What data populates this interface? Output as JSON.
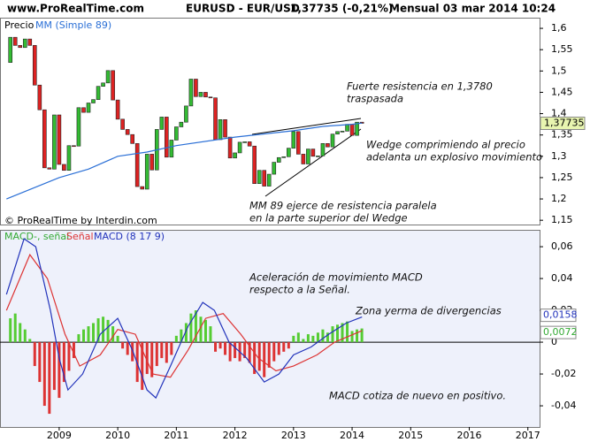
{
  "header": {
    "site": "www.ProRealTime.com",
    "instrument": "EURUSD - EUR/USD",
    "quote": "1,37735 (-0,21%)",
    "period": "Mensual  03 mar 2014 10:24"
  },
  "chart_data": [
    {
      "type": "candlestick",
      "legend": [
        "Precio",
        "MM (Simple 89)"
      ],
      "credit": "© ProRealTime by Interdin.com",
      "x": [
        2008.167,
        2008.25,
        2008.333,
        2008.417,
        2008.5,
        2008.583,
        2008.667,
        2008.75,
        2008.833,
        2008.917,
        2009,
        2009.083,
        2009.167,
        2009.25,
        2009.333,
        2009.417,
        2009.5,
        2009.583,
        2009.667,
        2009.75,
        2009.833,
        2009.917,
        2010,
        2010.083,
        2010.167,
        2010.25,
        2010.333,
        2010.417,
        2010.5,
        2010.583,
        2010.667,
        2010.75,
        2010.833,
        2010.917,
        2011,
        2011.083,
        2011.167,
        2011.25,
        2011.333,
        2011.417,
        2011.5,
        2011.583,
        2011.667,
        2011.75,
        2011.833,
        2011.917,
        2012,
        2012.083,
        2012.167,
        2012.25,
        2012.333,
        2012.417,
        2012.5,
        2012.583,
        2012.667,
        2012.75,
        2012.833,
        2012.917,
        2013,
        2013.083,
        2013.167,
        2013.25,
        2013.333,
        2013.417,
        2013.5,
        2013.583,
        2013.667,
        2013.75,
        2013.833,
        2013.917,
        2014,
        2014.083,
        2014.167
      ],
      "open": [
        1.52,
        1.579,
        1.56,
        1.555,
        1.575,
        1.56,
        1.467,
        1.409,
        1.273,
        1.27,
        1.397,
        1.281,
        1.267,
        1.325,
        1.324,
        1.414,
        1.403,
        1.425,
        1.433,
        1.464,
        1.472,
        1.501,
        1.432,
        1.387,
        1.363,
        1.351,
        1.33,
        1.229,
        1.223,
        1.305,
        1.268,
        1.363,
        1.392,
        1.298,
        1.338,
        1.369,
        1.38,
        1.418,
        1.481,
        1.44,
        1.45,
        1.439,
        1.437,
        1.339,
        1.386,
        1.345,
        1.296,
        1.308,
        1.333,
        1.334,
        1.324,
        1.236,
        1.267,
        1.23,
        1.258,
        1.286,
        1.297,
        1.299,
        1.319,
        1.358,
        1.305,
        1.282,
        1.317,
        1.3,
        1.301,
        1.33,
        1.322,
        1.352,
        1.358,
        1.359,
        1.375,
        1.349,
        1.38
      ],
      "close": [
        1.579,
        1.56,
        1.555,
        1.575,
        1.56,
        1.467,
        1.409,
        1.273,
        1.27,
        1.397,
        1.281,
        1.267,
        1.325,
        1.324,
        1.414,
        1.403,
        1.425,
        1.433,
        1.464,
        1.472,
        1.501,
        1.432,
        1.387,
        1.363,
        1.351,
        1.33,
        1.229,
        1.223,
        1.305,
        1.268,
        1.363,
        1.392,
        1.298,
        1.338,
        1.369,
        1.38,
        1.418,
        1.481,
        1.44,
        1.45,
        1.439,
        1.437,
        1.339,
        1.386,
        1.345,
        1.296,
        1.308,
        1.333,
        1.334,
        1.324,
        1.236,
        1.267,
        1.23,
        1.258,
        1.286,
        1.297,
        1.299,
        1.319,
        1.358,
        1.305,
        1.282,
        1.317,
        1.3,
        1.301,
        1.33,
        1.322,
        1.352,
        1.358,
        1.359,
        1.375,
        1.349,
        1.38,
        1.37735
      ],
      "ma": {
        "name": "MM (Simple 89)",
        "color": "#2a6fd6",
        "x": [
          2008.1,
          2009,
          2009.5,
          2010,
          2010.5,
          2011,
          2012,
          2013,
          2013.5,
          2014,
          2014.17
        ],
        "values": [
          1.2,
          1.25,
          1.27,
          1.3,
          1.31,
          1.325,
          1.345,
          1.36,
          1.37,
          1.375,
          1.378
        ]
      },
      "last": {
        "value": 1.37735,
        "label": "1,37735"
      },
      "xlim": [
        2007.99,
        2017.2
      ],
      "xticks": [
        2009,
        2010,
        2011,
        2012,
        2013,
        2014,
        2015,
        2016,
        2017
      ],
      "ylim": [
        1.14,
        1.625
      ],
      "yticks": [
        {
          "value": 1.15,
          "label": "1,15"
        },
        {
          "value": 1.2,
          "label": "1,2"
        },
        {
          "value": 1.25,
          "label": "1,25"
        },
        {
          "value": 1.3,
          "label": "1,3"
        },
        {
          "value": 1.35,
          "label": "1,35"
        },
        {
          "value": 1.4,
          "label": "1,4"
        },
        {
          "value": 1.45,
          "label": "1,45"
        },
        {
          "value": 1.5,
          "label": "1,5"
        },
        {
          "value": 1.55,
          "label": "1,55"
        },
        {
          "value": 1.6,
          "label": "1,6"
        }
      ],
      "annotations": [
        "Fuerte resistencia en 1,3780",
        "traspasada",
        "Wedge comprimiendo al precio",
        "adelanta un explosivo movimiento",
        "MM 89 ejerce de resistencia paralela",
        "en la parte superior del Wedge"
      ]
    },
    {
      "type": "macd",
      "legend": [
        "MACD-, señal",
        "Señal",
        "MACD (8 17 9)"
      ],
      "x": [
        2008.167,
        2008.25,
        2008.333,
        2008.417,
        2008.5,
        2008.583,
        2008.667,
        2008.75,
        2008.833,
        2008.917,
        2009,
        2009.083,
        2009.167,
        2009.25,
        2009.333,
        2009.417,
        2009.5,
        2009.583,
        2009.667,
        2009.75,
        2009.833,
        2009.917,
        2010,
        2010.083,
        2010.167,
        2010.25,
        2010.333,
        2010.417,
        2010.5,
        2010.583,
        2010.667,
        2010.75,
        2010.833,
        2010.917,
        2011,
        2011.083,
        2011.167,
        2011.25,
        2011.333,
        2011.417,
        2011.5,
        2011.583,
        2011.667,
        2011.75,
        2011.833,
        2011.917,
        2012,
        2012.083,
        2012.167,
        2012.25,
        2012.333,
        2012.417,
        2012.5,
        2012.583,
        2012.667,
        2012.75,
        2012.833,
        2012.917,
        2013,
        2013.083,
        2013.167,
        2013.25,
        2013.333,
        2013.417,
        2013.5,
        2013.583,
        2013.667,
        2013.75,
        2013.833,
        2013.917,
        2014,
        2014.083,
        2014.167
      ],
      "histogram": [
        0.015,
        0.018,
        0.012,
        0.008,
        0.002,
        -0.015,
        -0.025,
        -0.04,
        -0.045,
        -0.03,
        -0.035,
        -0.025,
        -0.018,
        -0.01,
        0.005,
        0.008,
        0.01,
        0.012,
        0.015,
        0.016,
        0.014,
        0.01,
        0.004,
        -0.004,
        -0.008,
        -0.012,
        -0.025,
        -0.03,
        -0.02,
        -0.022,
        -0.015,
        -0.01,
        -0.013,
        -0.008,
        0.004,
        0.008,
        0.012,
        0.018,
        0.02,
        0.016,
        0.014,
        0.01,
        -0.006,
        -0.004,
        -0.008,
        -0.012,
        -0.01,
        -0.012,
        -0.01,
        -0.013,
        -0.02,
        -0.018,
        -0.022,
        -0.016,
        -0.012,
        -0.008,
        -0.006,
        -0.004,
        0.004,
        0.006,
        0.002,
        0.005,
        0.004,
        0.006,
        0.008,
        0.006,
        0.01,
        0.011,
        0.012,
        0.013,
        0.007,
        0.008,
        0.0086
      ],
      "pos_color": "#55cc33",
      "neg_color": "#dd3333",
      "macd": {
        "name": "MACD",
        "color": "#2233bb",
        "x": [
          2008.1,
          2008.4,
          2008.6,
          2008.85,
          2009,
          2009.15,
          2009.4,
          2009.7,
          2010,
          2010.25,
          2010.5,
          2010.65,
          2010.9,
          2011.2,
          2011.45,
          2011.65,
          2011.9,
          2012.2,
          2012.5,
          2012.75,
          2013,
          2013.3,
          2013.6,
          2013.9,
          2014.17
        ],
        "values": [
          0.03,
          0.065,
          0.06,
          0.02,
          -0.01,
          -0.03,
          -0.02,
          0.005,
          0.015,
          -0.005,
          -0.03,
          -0.035,
          -0.015,
          0.01,
          0.025,
          0.02,
          0,
          -0.01,
          -0.025,
          -0.02,
          -0.008,
          -0.003,
          0.005,
          0.012,
          0.0158
        ]
      },
      "signal": {
        "name": "Señal",
        "color": "#dd3333",
        "x": [
          2008.1,
          2008.5,
          2008.8,
          2009.1,
          2009.35,
          2009.7,
          2010,
          2010.3,
          2010.6,
          2010.9,
          2011.2,
          2011.5,
          2011.8,
          2012.1,
          2012.4,
          2012.7,
          2013,
          2013.4,
          2013.7,
          2014.17
        ],
        "values": [
          0.02,
          0.055,
          0.04,
          0.005,
          -0.015,
          -0.008,
          0.008,
          0.005,
          -0.02,
          -0.022,
          -0.005,
          0.015,
          0.018,
          0.005,
          -0.01,
          -0.018,
          -0.015,
          -0.008,
          0,
          0.0072
        ]
      },
      "last_macd": {
        "value": 0.0158,
        "label": "0,0158"
      },
      "last_signal": {
        "value": 0.0072,
        "label": "0,0072"
      },
      "ylim": [
        -0.0533,
        0.0706
      ],
      "yticks": [
        {
          "value": -0.04,
          "label": "-0,04"
        },
        {
          "value": -0.02,
          "label": "-0,02"
        },
        0,
        {
          "value": 0.02,
          "label": "0,02"
        },
        {
          "value": 0.04,
          "label": "0,04"
        },
        {
          "value": 0.06,
          "label": "0,06"
        }
      ],
      "annotations": [
        "Aceleración de movimiento MACD",
        "respecto a la Señal.",
        "Zona yerma de divergencias",
        "MACD cotiza de nuevo en positivo."
      ]
    }
  ]
}
